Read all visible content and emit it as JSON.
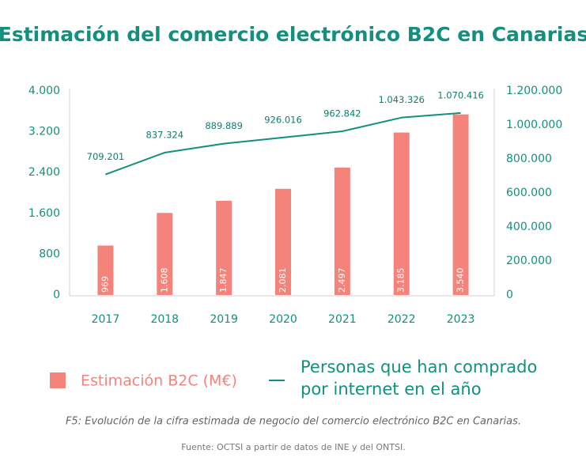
{
  "chart_data": {
    "type": "bar",
    "title": "Estimación del comercio electrónico B2C en Canarias",
    "categories": [
      "2017",
      "2018",
      "2019",
      "2020",
      "2021",
      "2022",
      "2023"
    ],
    "series": [
      {
        "type": "bar",
        "name": "Estimación B2C (M€)",
        "color": "#f4837b",
        "values": [
          969,
          1608,
          1847,
          2081,
          2497,
          3185,
          3540
        ],
        "value_labels": [
          "969",
          "1.608",
          "1.847",
          "2.081",
          "2.497",
          "3.185",
          "3.540"
        ]
      },
      {
        "type": "line",
        "name": "Personas que han comprado por internet en el año",
        "color": "#13907d",
        "axis": "y2",
        "values": [
          709201,
          837324,
          889889,
          926016,
          962842,
          1043326,
          1070416
        ],
        "value_labels": [
          "709.201",
          "837.324",
          "889.889",
          "926.016",
          "962.842",
          "1.043.326",
          "1.070.416"
        ]
      }
    ],
    "ylim": [
      0,
      4000
    ],
    "yticks": [
      0,
      800,
      {
        "value": 1600,
        "label": "1.600"
      },
      {
        "value": 2400,
        "label": "2.400"
      },
      {
        "value": 3200,
        "label": "3.200"
      },
      {
        "value": 4000,
        "label": "4.000"
      }
    ],
    "y2lim": [
      0,
      1200000
    ],
    "y2ticks": [
      0,
      {
        "value": 200000,
        "label": "200.000"
      },
      {
        "value": 400000,
        "label": "400.000"
      },
      {
        "value": 600000,
        "label": "600.000"
      },
      {
        "value": 800000,
        "label": "800.000"
      },
      {
        "value": 1000000,
        "label": "1.000.000"
      },
      {
        "value": 1200000,
        "label": "1.200.000"
      }
    ],
    "caption": "F5: Evolución de la cifra estimada de negocio del comercio electrónico B2C en Canarias.",
    "source": "Fuente: OCTSI a partir de datos de INE y del ONTSI."
  }
}
